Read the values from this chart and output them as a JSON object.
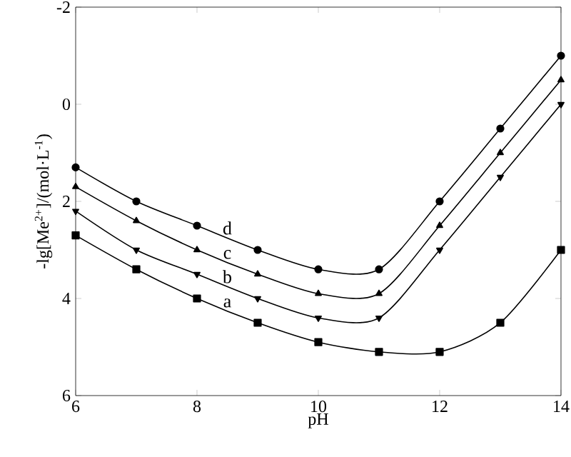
{
  "chart_data": {
    "type": "line",
    "xlabel": "pH",
    "ylabel": "-lg[Me$^{2+}$]/(mol·L$^{-1}$)",
    "x": [
      6,
      7,
      8,
      9,
      10,
      11,
      12,
      13,
      14
    ],
    "series": [
      {
        "name": "a",
        "color": "#000000",
        "marker": "square",
        "values": [
          2.7,
          3.4,
          4.0,
          4.5,
          4.9,
          5.1,
          5.1,
          4.5,
          3.0
        ]
      },
      {
        "name": "b",
        "color": "#000000",
        "marker": "triangle down",
        "values": [
          2.2,
          3.0,
          3.5,
          4.0,
          4.4,
          4.4,
          3.0,
          1.5,
          0.0
        ]
      },
      {
        "name": "c",
        "color": "#000000",
        "marker": "triangle",
        "values": [
          1.7,
          2.4,
          3.0,
          3.5,
          3.9,
          3.9,
          2.5,
          1.0,
          -0.5
        ]
      },
      {
        "name": "d",
        "color": "#000000",
        "marker": "circle",
        "values": [
          1.3,
          2.0,
          2.5,
          3.0,
          3.4,
          3.4,
          2.0,
          0.5,
          -1.0
        ]
      }
    ],
    "xlim": [
      6,
      14
    ],
    "ylim": [
      6,
      -2
    ],
    "xticks": [
      6,
      8,
      10,
      12,
      14
    ],
    "yticks": [
      -2,
      0,
      2,
      4,
      6
    ],
    "grid": false,
    "legend": false,
    "line_style": "solid"
  }
}
